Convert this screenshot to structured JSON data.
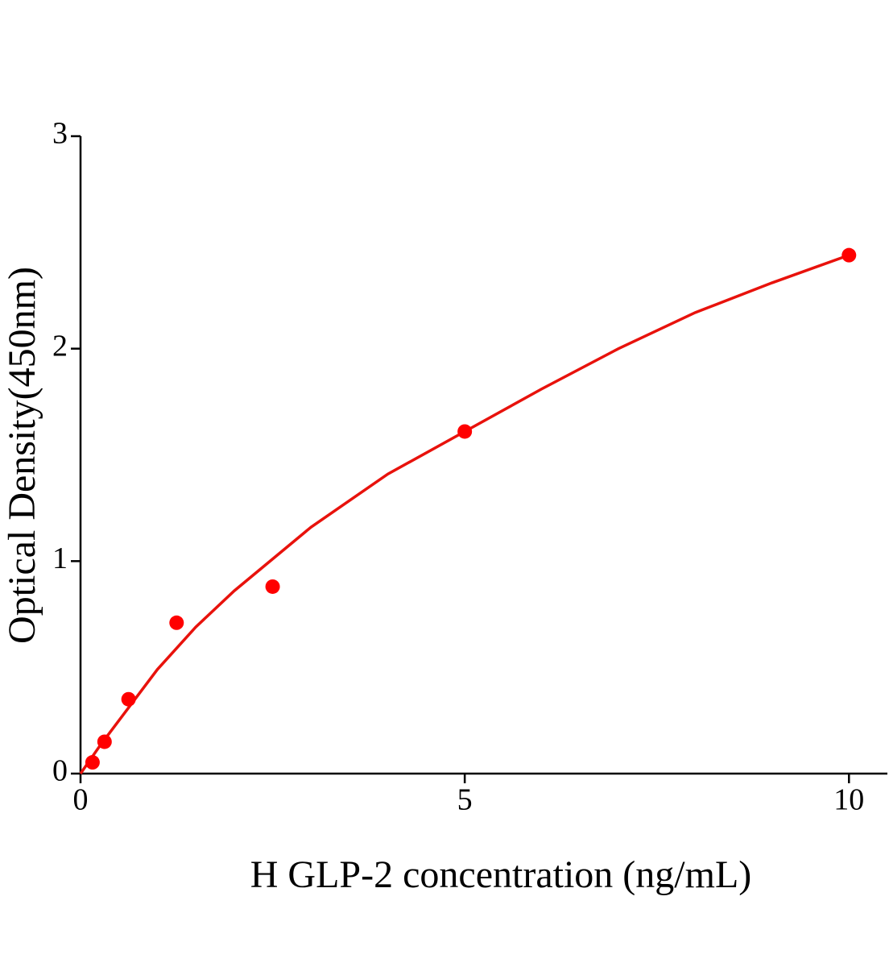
{
  "chart_data": {
    "type": "scatter",
    "x_label": "H GLP-2 concentration (ng/mL)",
    "y_label": "Optical Density(450nm)",
    "xlim": [
      0,
      10.5
    ],
    "xticks": [
      0,
      5,
      10
    ],
    "ylim": [
      0,
      3
    ],
    "yticks": [
      0,
      1,
      2,
      3
    ],
    "grid": false,
    "series": [
      {
        "type": "scatter",
        "color": "#ff0000",
        "x": [
          0.156,
          0.3125,
          0.625,
          1.25,
          2.5,
          5,
          10
        ],
        "values": [
          0.053,
          0.15,
          0.35,
          0.71,
          0.88,
          1.61,
          2.44
        ]
      },
      {
        "type": "line",
        "color": "#e8120c",
        "x": [
          0,
          0.25,
          0.5,
          1,
          1.5,
          2,
          3,
          4,
          5,
          6,
          7,
          8,
          9,
          10
        ],
        "values": [
          0,
          0.13,
          0.25,
          0.49,
          0.69,
          0.86,
          1.16,
          1.41,
          1.61,
          1.81,
          2.0,
          2.17,
          2.31,
          2.44
        ]
      }
    ]
  }
}
